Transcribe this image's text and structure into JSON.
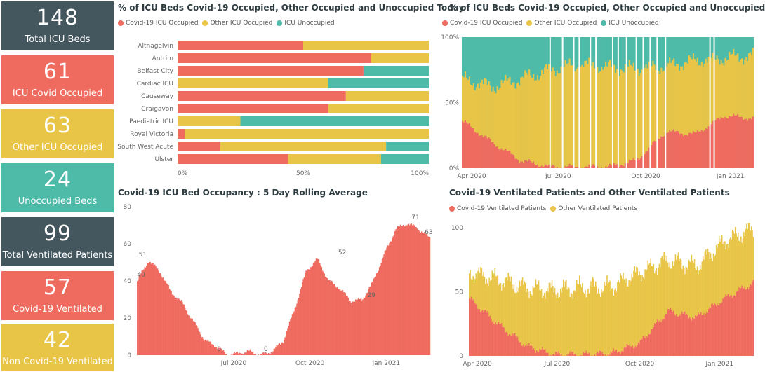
{
  "colors": {
    "covid": "#ef6a5f",
    "other": "#e8c547",
    "unoccupied": "#4ebaa8",
    "dark": "#44575f"
  },
  "cards": [
    {
      "value": "148",
      "label": "Total ICU Beds",
      "color": "dark"
    },
    {
      "value": "61",
      "label": "ICU Covid Occupied",
      "color": "red"
    },
    {
      "value": "63",
      "label": "Other ICU Occupied",
      "color": "yellow"
    },
    {
      "value": "24",
      "label": "Unoccupied Beds",
      "color": "teal"
    },
    {
      "value": "99",
      "label": "Total Ventilated Patients",
      "color": "dark"
    },
    {
      "value": "57",
      "label": "Covid-19 Ventilated",
      "color": "red"
    },
    {
      "value": "42",
      "label": "Non Covid-19 Ventilated",
      "color": "yellow"
    }
  ],
  "chart_data": [
    {
      "type": "bar",
      "orientation": "horizontal-stacked-100",
      "title": "% of ICU Beds Covid-19 Occupied, Other Occupied and Unoccupied Today",
      "legend": [
        "Covid-19 ICU Occupied",
        "Other ICU Occupied",
        "ICU Unoccupied"
      ],
      "categories": [
        "Altnagelvin",
        "Antrim",
        "Belfast City",
        "Cardiac ICU",
        "Causeway",
        "Craigavon",
        "Paediatric ICU",
        "Royal Victoria",
        "South West Acute",
        "Ulster"
      ],
      "series": [
        {
          "name": "Covid-19 ICU Occupied",
          "values": [
            50,
            77,
            74,
            0,
            67,
            60,
            0,
            3,
            17,
            44
          ]
        },
        {
          "name": "Other ICU Occupied",
          "values": [
            50,
            23,
            0,
            60,
            33,
            40,
            25,
            97,
            66,
            37
          ]
        },
        {
          "name": "ICU Unoccupied",
          "values": [
            0,
            0,
            26,
            40,
            0,
            0,
            75,
            0,
            17,
            19
          ]
        }
      ],
      "xticks": [
        "0%",
        "50%",
        "100%"
      ]
    },
    {
      "type": "area",
      "stacked": "100%",
      "title": "% of ICU Beds Covid-19 Occupied, Other Occupied and Unoccupied",
      "legend": [
        "Covid-19 ICU Occupied",
        "Other ICU Occupied",
        "ICU Unoccupied"
      ],
      "xticks": [
        "Apr 2020",
        "Jul 2020",
        "Oct 2020",
        "Jan 2021"
      ],
      "yticks": [
        "0%",
        "50%",
        "100%"
      ],
      "x": [
        "Apr 2020",
        "May 2020",
        "Jun 2020",
        "Jul 2020",
        "Aug 2020",
        "Sep 2020",
        "Oct 2020",
        "Nov 2020",
        "Dec 2020",
        "Jan 2021",
        "Feb 2021"
      ],
      "series": [
        {
          "name": "Covid-19 ICU Occupied",
          "values": [
            36,
            20,
            6,
            1,
            1,
            1,
            6,
            28,
            26,
            40,
            38
          ]
        },
        {
          "name": "Other ICU Occupied",
          "values": [
            32,
            42,
            62,
            74,
            78,
            76,
            70,
            50,
            56,
            44,
            48
          ]
        }
      ]
    },
    {
      "type": "bar",
      "title": "Covid-19 ICU Bed Occupancy : 5 Day Rolling Average",
      "ylim": [
        0,
        80
      ],
      "yticks": [
        0,
        20,
        40,
        60,
        80
      ],
      "xticks": [
        "Jul 2020",
        "Oct 2020",
        "Jan 2021"
      ],
      "x": [
        "Mar 24",
        "Apr 1",
        "Apr 10",
        "Apr 20",
        "May 1",
        "May 15",
        "Jun 1",
        "Jun 15",
        "Jul 1",
        "Jul 20",
        "Aug 10",
        "Sep 1",
        "Sep 15",
        "Oct 1",
        "Oct 15",
        "Nov 1",
        "Nov 8",
        "Nov 20",
        "Dec 1",
        "Dec 10",
        "Dec 20",
        "Jan 1",
        "Jan 10",
        "Jan 20",
        "Feb 1",
        "Feb 6",
        "Feb 10"
      ],
      "values": [
        40,
        51,
        45,
        34,
        28,
        18,
        8,
        5,
        0,
        1,
        2,
        0,
        2,
        8,
        25,
        45,
        52,
        40,
        36,
        29,
        30,
        40,
        55,
        68,
        71,
        68,
        63
      ],
      "data_labels": [
        {
          "x": "Mar 24",
          "label": "40"
        },
        {
          "x": "Apr 1",
          "label": "51"
        },
        {
          "x": "Jul 1",
          "label": "0"
        },
        {
          "x": "Sep 1",
          "label": "0"
        },
        {
          "x": "Nov 8",
          "label": "52"
        },
        {
          "x": "Dec 10",
          "label": "29"
        },
        {
          "x": "Feb 1",
          "label": "71"
        },
        {
          "x": "Feb 10",
          "label": "63"
        }
      ]
    },
    {
      "type": "bar",
      "stacked": true,
      "title": "Covid-19 Ventilated Patients and Other Ventilated Patients",
      "legend": [
        "Covid-19 Ventilated Patients",
        "Other Ventilated Patients"
      ],
      "ylim": [
        0,
        105
      ],
      "yticks": [
        0,
        50,
        100
      ],
      "xticks": [
        "Apr 2020",
        "Jul 2020",
        "Oct 2020",
        "Jan 2021"
      ],
      "x": [
        "Apr 2020",
        "May 2020",
        "Jun 2020",
        "Jul 2020",
        "Aug 2020",
        "Sep 2020",
        "Oct 2020",
        "Nov 2020",
        "Dec 2020",
        "Jan 2021",
        "Feb 2021"
      ],
      "series": [
        {
          "name": "Covid-19 Ventilated Patients",
          "values": [
            45,
            25,
            8,
            1,
            1,
            2,
            10,
            35,
            30,
            45,
            57
          ]
        },
        {
          "name": "Other Ventilated Patients",
          "values": [
            20,
            35,
            45,
            50,
            52,
            52,
            55,
            40,
            40,
            45,
            42
          ]
        }
      ]
    }
  ]
}
